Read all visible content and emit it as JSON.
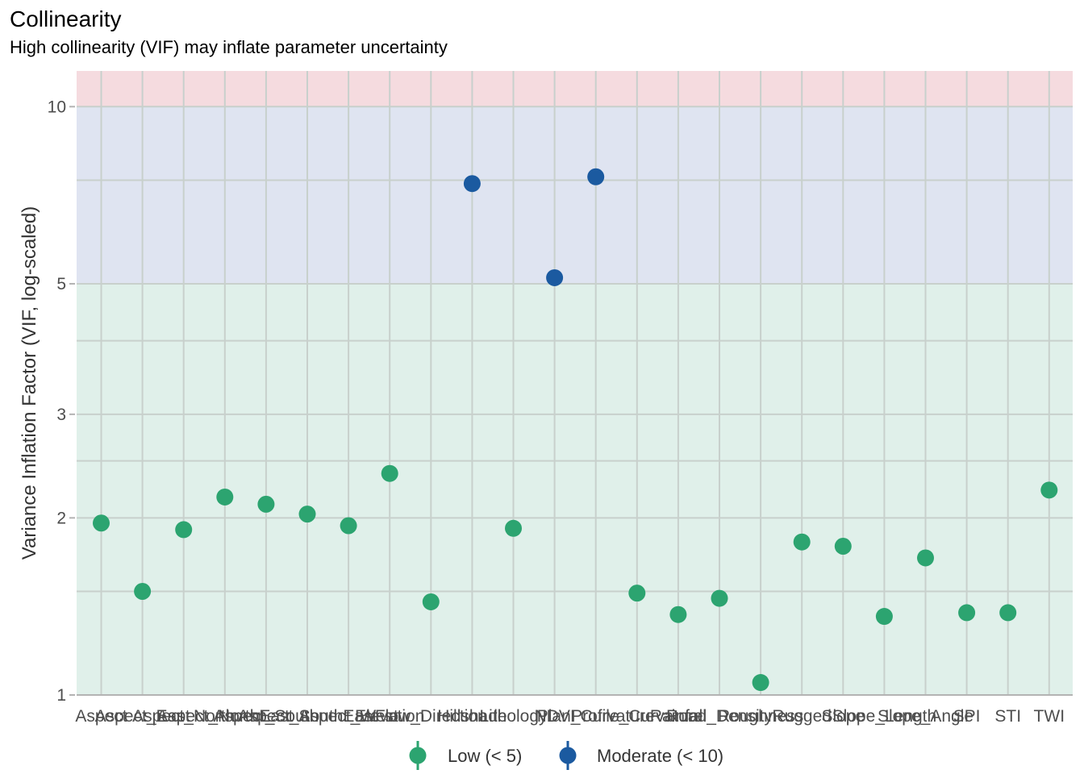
{
  "title": "Collinearity",
  "subtitle": "High collinearity (VIF) may inflate parameter uncertainty",
  "colors": {
    "low": "#2ca470",
    "moderate": "#1b5aa0",
    "band_low": "#e0f0ea",
    "band_moderate": "#dfe4f1",
    "band_high": "#f5dbdf",
    "grid": "#c8d0cc"
  },
  "chart_data": {
    "type": "scatter",
    "title": "Collinearity",
    "subtitle": "High collinearity (VIF) may inflate parameter uncertainty",
    "xlabel": "",
    "ylabel": "Variance Inflation Factor (VIF, log-scaled)",
    "y_scale": "log",
    "ylim": [
      1,
      11.5
    ],
    "y_ticks": [
      1,
      2,
      3,
      5,
      10
    ],
    "bands": [
      {
        "from": 1,
        "to": 5,
        "level": "low"
      },
      {
        "from": 5,
        "to": 10,
        "level": "moderate"
      },
      {
        "from": 10,
        "to": 11.5,
        "level": "high"
      }
    ],
    "legend": {
      "position": "bottom",
      "entries": [
        {
          "key": "low",
          "label": "Low (< 5)"
        },
        {
          "key": "moderate",
          "label": "Moderate (< 10)"
        }
      ]
    },
    "points": [
      {
        "x": "Aspect",
        "y": 1.96,
        "group": "low"
      },
      {
        "x": "Aspect_East",
        "y": 1.5,
        "group": "low"
      },
      {
        "x": "Aspect_North",
        "y": 1.91,
        "group": "low"
      },
      {
        "x": "Aspect_NorthEast",
        "y": 2.17,
        "group": "low"
      },
      {
        "x": "Aspect_South",
        "y": 2.11,
        "group": "low"
      },
      {
        "x": "Aspect_SouthEast",
        "y": 2.03,
        "group": "low"
      },
      {
        "x": "Aspect_West",
        "y": 1.94,
        "group": "low"
      },
      {
        "x": "Elevation",
        "y": 2.38,
        "group": "low"
      },
      {
        "x": "Flow_Direction",
        "y": 1.44,
        "group": "low"
      },
      {
        "x": "Hillshade",
        "y": 7.4,
        "group": "moderate"
      },
      {
        "x": "Lithology",
        "y": 1.92,
        "group": "low"
      },
      {
        "x": "NDVI",
        "y": 5.12,
        "group": "moderate"
      },
      {
        "x": "Plan_Curvature",
        "y": 7.6,
        "group": "moderate"
      },
      {
        "x": "Profile_Curvature",
        "y": 1.49,
        "group": "low"
      },
      {
        "x": "Rainfall",
        "y": 1.37,
        "group": "low"
      },
      {
        "x": "Road_Density",
        "y": 1.46,
        "group": "low"
      },
      {
        "x": "Roughness",
        "y": 1.05,
        "group": "low"
      },
      {
        "x": "Rugged",
        "y": 1.82,
        "group": "low"
      },
      {
        "x": "Slope",
        "y": 1.79,
        "group": "low"
      },
      {
        "x": "Slope_Length",
        "y": 1.36,
        "group": "low"
      },
      {
        "x": "Slope_Angle",
        "y": 1.71,
        "group": "low"
      },
      {
        "x": "SPI",
        "y": 1.38,
        "group": "low"
      },
      {
        "x": "STI",
        "y": 1.38,
        "group": "low"
      },
      {
        "x": "TWI",
        "y": 2.23,
        "group": "low"
      }
    ]
  }
}
